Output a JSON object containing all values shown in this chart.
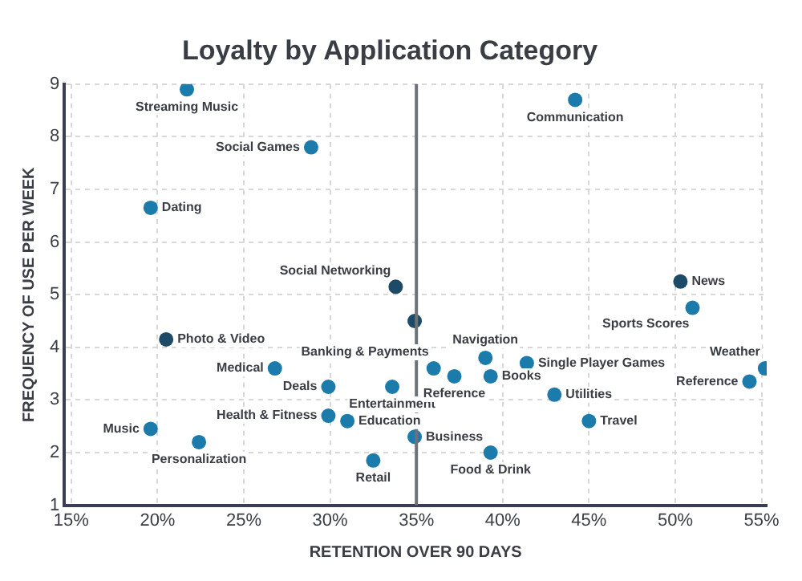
{
  "chart_data": {
    "type": "scatter",
    "title": "Loyalty by Application Category",
    "xlabel": "RETENTION OVER 90 DAYS",
    "ylabel": "FREQUENCY OF USE PER WEEK",
    "x": [
      21.7,
      28.9,
      19.6,
      44.2,
      33.8,
      50.3,
      51.0,
      20.5,
      26.8,
      29.9,
      33.6,
      36.0,
      39.0,
      41.4,
      37.2,
      39.3,
      43.0,
      45.0,
      55.2,
      54.3,
      29.9,
      31.0,
      19.6,
      22.4,
      34.9,
      32.5,
      39.3,
      34.9
    ],
    "values": [
      8.9,
      7.8,
      6.65,
      8.7,
      5.15,
      5.25,
      4.75,
      4.15,
      3.6,
      3.25,
      3.25,
      3.6,
      3.8,
      3.7,
      3.45,
      3.45,
      3.1,
      2.6,
      3.6,
      3.35,
      2.7,
      2.6,
      2.45,
      2.2,
      2.3,
      1.85,
      2.0,
      4.5
    ],
    "colors": [
      "#1b7bab",
      "#1b7bab",
      "#1b7bab",
      "#1b7bab",
      "#1d4a66",
      "#1d4a66",
      "#1b7bab",
      "#1d4a66",
      "#1b7bab",
      "#1b7bab",
      "#1b7bab",
      "#1b7bab",
      "#1b7bab",
      "#1b7bab",
      "#1b7bab",
      "#1b7bab",
      "#1b7bab",
      "#1b7bab",
      "#1b7bab",
      "#1b7bab",
      "#1b7bab",
      "#1b7bab",
      "#1b7bab",
      "#1b7bab",
      "#1b7bab",
      "#1b7bab",
      "#1b7bab",
      "#1d4a66"
    ],
    "xlim": [
      14.6,
      55.3
    ],
    "ylim": [
      1,
      9
    ],
    "xticks": [
      {
        "value": 15,
        "label": "15%"
      },
      {
        "value": 20,
        "label": "20%"
      },
      {
        "value": 25,
        "label": "25%"
      },
      {
        "value": 30,
        "label": "30%"
      },
      {
        "value": 35,
        "label": "35%"
      },
      {
        "value": 40,
        "label": "40%"
      },
      {
        "value": 45,
        "label": "45%"
      },
      {
        "value": 50,
        "label": "50%"
      },
      {
        "value": 55,
        "label": "55%"
      }
    ],
    "yticks": [
      1,
      2,
      3,
      4,
      5,
      6,
      7,
      8,
      9
    ],
    "grid": true,
    "legend": false,
    "marker": "circle",
    "ref_lines": [
      {
        "axis": "x",
        "value": 35,
        "color": "#6e7177"
      }
    ],
    "annotations": [
      {
        "text": "Streaming Music",
        "x": 21.7,
        "y": 8.9
      },
      {
        "text": "Social Games",
        "x": 28.9,
        "y": 7.8
      },
      {
        "text": "Dating",
        "x": 19.6,
        "y": 6.65
      },
      {
        "text": "Communication",
        "x": 44.2,
        "y": 8.7
      },
      {
        "text": "Social Networking",
        "x": 33.8,
        "y": 5.15
      },
      {
        "text": "News",
        "x": 50.3,
        "y": 5.25
      },
      {
        "text": "Sports Scores",
        "x": 51.0,
        "y": 4.75
      },
      {
        "text": "Photo & Video",
        "x": 20.5,
        "y": 4.15
      },
      {
        "text": "Medical",
        "x": 26.8,
        "y": 3.6
      },
      {
        "text": "Deals",
        "x": 29.9,
        "y": 3.25
      },
      {
        "text": "Entertainment",
        "x": 33.6,
        "y": 3.25
      },
      {
        "text": "Banking & Payments",
        "x": 36.0,
        "y": 3.6
      },
      {
        "text": "Navigation",
        "x": 39.0,
        "y": 3.8
      },
      {
        "text": "Single Player Games",
        "x": 41.4,
        "y": 3.7
      },
      {
        "text": "Reference",
        "x": 37.2,
        "y": 3.45
      },
      {
        "text": "Books",
        "x": 39.3,
        "y": 3.45
      },
      {
        "text": "Utilities",
        "x": 43.0,
        "y": 3.1
      },
      {
        "text": "Travel",
        "x": 45.0,
        "y": 2.6
      },
      {
        "text": "Weather",
        "x": 55.2,
        "y": 3.6
      },
      {
        "text": "Reference",
        "x": 54.3,
        "y": 3.35
      },
      {
        "text": "Health & Fitness",
        "x": 29.9,
        "y": 2.7
      },
      {
        "text": "Education",
        "x": 31.0,
        "y": 2.6
      },
      {
        "text": "Music",
        "x": 19.6,
        "y": 2.45
      },
      {
        "text": "Personalization",
        "x": 22.4,
        "y": 2.2
      },
      {
        "text": "Business",
        "x": 34.9,
        "y": 2.3
      },
      {
        "text": "Retail",
        "x": 32.5,
        "y": 1.85
      },
      {
        "text": "Food & Drink",
        "x": 39.3,
        "y": 2.0
      }
    ]
  }
}
